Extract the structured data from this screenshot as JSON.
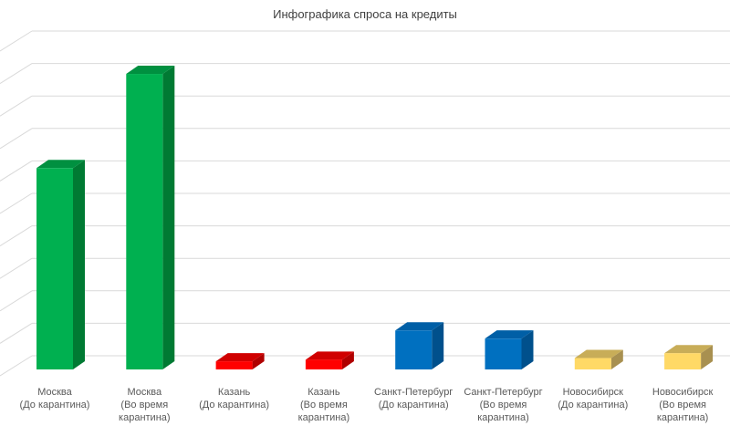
{
  "chart_data": {
    "type": "bar",
    "style": "3d-column",
    "title": "Инфографика спроса на кредиты",
    "xlabel": "",
    "ylabel": "",
    "categories": [
      [
        "Москва",
        "(До карантина)"
      ],
      [
        "Москва",
        "(Во время",
        "карантина)"
      ],
      [
        "Казань",
        "(До карантина)"
      ],
      [
        "Казань",
        "(Во время",
        "карантина)"
      ],
      [
        "Санкт-Петербург",
        "(До карантина)"
      ],
      [
        "Санкт-Петербург",
        "(Во время",
        "карантина)"
      ],
      [
        "Новосибирск",
        "(До карантина)"
      ],
      [
        "Новосибирск",
        "(Во время",
        "карантина)"
      ]
    ],
    "values": [
      6.2,
      9.1,
      0.25,
      0.3,
      1.2,
      0.95,
      0.35,
      0.5
    ],
    "ylim": [
      0,
      10
    ],
    "y_tick_labels_shown": false,
    "grid": true,
    "legend": "none",
    "colors": {
      "moscow": {
        "front": "#00b050",
        "side": "#007a33",
        "top": "#009040"
      },
      "kazan": {
        "front": "#ff0000",
        "side": "#b00000",
        "top": "#d00000"
      },
      "spb": {
        "front": "#0070c0",
        "side": "#00508c",
        "top": "#005fa6"
      },
      "novosibirsk": {
        "front": "#ffd966",
        "side": "#a89050",
        "top": "#c8ad58"
      }
    },
    "bar_colors": [
      "moscow",
      "moscow",
      "kazan",
      "kazan",
      "spb",
      "spb",
      "novosibirsk",
      "novosibirsk"
    ]
  }
}
